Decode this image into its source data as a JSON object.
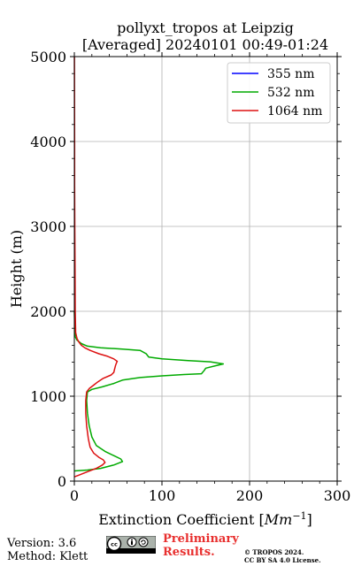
{
  "chart_data": {
    "type": "line",
    "title": [
      "pollyxt_tropos at Leipzig",
      "[Averaged] 20240101 00:49-01:24"
    ],
    "xlabel": "Extinction Coefficient [Mm⁻¹]",
    "xlabel_main": "Extinction Coefficient [",
    "xlabel_unit": "Mm",
    "xlabel_exp": "−1",
    "xlabel_close": "]",
    "ylabel": "Height (m)",
    "xlim": [
      0,
      300
    ],
    "ylim": [
      0,
      5000
    ],
    "xticks": [
      0,
      100,
      200,
      300
    ],
    "xtick_labels": [
      "0",
      "100",
      "200",
      "300"
    ],
    "yticks": [
      0,
      1000,
      2000,
      3000,
      4000,
      5000
    ],
    "ytick_labels": [
      "0",
      "1000",
      "2000",
      "3000",
      "4000",
      "5000"
    ],
    "grid": true,
    "legend_position": "top-right",
    "series": [
      {
        "name": "355 nm",
        "color": "#0000ff",
        "points": []
      },
      {
        "name": "532 nm",
        "color": "#00aa00",
        "points": [
          [
            0,
            120
          ],
          [
            15,
            130
          ],
          [
            30,
            150
          ],
          [
            45,
            190
          ],
          [
            55,
            230
          ],
          [
            53,
            260
          ],
          [
            45,
            300
          ],
          [
            35,
            350
          ],
          [
            25,
            420
          ],
          [
            20,
            520
          ],
          [
            17,
            650
          ],
          [
            15,
            800
          ],
          [
            14,
            950
          ],
          [
            15,
            1050
          ],
          [
            20,
            1080
          ],
          [
            32,
            1110
          ],
          [
            45,
            1150
          ],
          [
            55,
            1190
          ],
          [
            75,
            1220
          ],
          [
            100,
            1240
          ],
          [
            125,
            1255
          ],
          [
            145,
            1265
          ],
          [
            148,
            1300
          ],
          [
            150,
            1330
          ],
          [
            162,
            1360
          ],
          [
            170,
            1380
          ],
          [
            155,
            1405
          ],
          [
            130,
            1420
          ],
          [
            100,
            1440
          ],
          [
            85,
            1460
          ],
          [
            82,
            1500
          ],
          [
            75,
            1540
          ],
          [
            55,
            1555
          ],
          [
            30,
            1570
          ],
          [
            15,
            1590
          ],
          [
            8,
            1620
          ],
          [
            3,
            1660
          ],
          [
            1,
            1700
          ],
          [
            0.5,
            1800
          ],
          [
            0,
            2000
          ]
        ]
      },
      {
        "name": "1064 nm",
        "color": "#dd1111",
        "points": [
          [
            0,
            50
          ],
          [
            5,
            70
          ],
          [
            15,
            110
          ],
          [
            25,
            150
          ],
          [
            32,
            190
          ],
          [
            35,
            220
          ],
          [
            33,
            250
          ],
          [
            28,
            280
          ],
          [
            22,
            330
          ],
          [
            18,
            400
          ],
          [
            16,
            500
          ],
          [
            14,
            650
          ],
          [
            13,
            800
          ],
          [
            13,
            950
          ],
          [
            14,
            1050
          ],
          [
            17,
            1090
          ],
          [
            22,
            1130
          ],
          [
            27,
            1170
          ],
          [
            33,
            1210
          ],
          [
            42,
            1250
          ],
          [
            45,
            1280
          ],
          [
            46,
            1320
          ],
          [
            47,
            1360
          ],
          [
            48,
            1390
          ],
          [
            49,
            1410
          ],
          [
            45,
            1440
          ],
          [
            38,
            1470
          ],
          [
            28,
            1500
          ],
          [
            18,
            1540
          ],
          [
            12,
            1570
          ],
          [
            8,
            1600
          ],
          [
            5,
            1640
          ],
          [
            3,
            1680
          ],
          [
            1.5,
            1750
          ],
          [
            1,
            2000
          ],
          [
            0.8,
            2500
          ],
          [
            0.5,
            3000
          ],
          [
            0.3,
            3500
          ],
          [
            0.3,
            4000
          ],
          [
            0.2,
            4500
          ],
          [
            0.1,
            5000
          ]
        ]
      }
    ]
  },
  "footer": {
    "version": "Version: 3.6",
    "method": "Method: Klett",
    "preliminary_line1": "Preliminary",
    "preliminary_line2": "Results.",
    "copyright_line1": "© TROPOS 2024.",
    "copyright_line2": "CC BY SA 4.0 License."
  },
  "license_logo": "cc-by-sa-icon",
  "colors": {
    "grid": "#b0b0b0",
    "preliminary": "#e8302f"
  }
}
